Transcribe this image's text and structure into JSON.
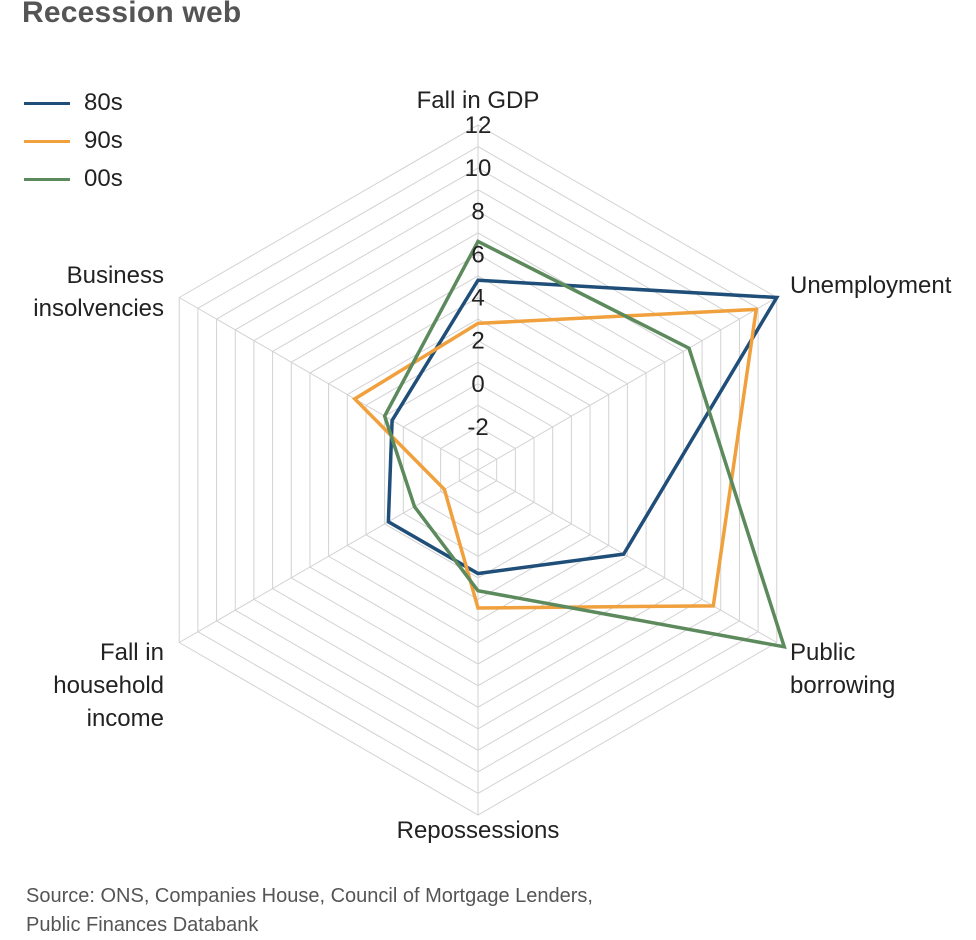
{
  "chart_data": {
    "type": "radar",
    "title": "Recession web",
    "axes": [
      "Fall in GDP",
      "Unemployment",
      "Public borrowing",
      "Repossessions",
      "Fall in household income",
      "Business insolvencies"
    ],
    "axis_label_lines": [
      [
        "Fall in GDP"
      ],
      [
        "Unemployment"
      ],
      [
        "Public",
        "borrowing"
      ],
      [
        "Repossessions"
      ],
      [
        "Fall in",
        "household",
        "income"
      ],
      [
        "Business",
        "insolvencies"
      ]
    ],
    "range": [
      -4,
      12
    ],
    "ticks": [
      -2,
      0,
      2,
      4,
      6,
      8,
      10,
      12
    ],
    "grid": true,
    "legend_position": "top-left",
    "series": [
      {
        "name": "80s",
        "color": "#1f4e79",
        "values": [
          4.8,
          12.0,
          3.8,
          0.8,
          0.8,
          0.6
        ]
      },
      {
        "name": "90s",
        "color": "#f0a03c",
        "values": [
          2.8,
          10.9,
          8.6,
          2.4,
          -2.2,
          2.6
        ]
      },
      {
        "name": "00s",
        "color": "#5c8a5c",
        "values": [
          6.6,
          7.3,
          12.4,
          1.6,
          -0.6,
          1.0
        ]
      }
    ]
  },
  "source": "Source: ONS, Companies House, Council of Mortgage Lenders, Public Finances Databank"
}
